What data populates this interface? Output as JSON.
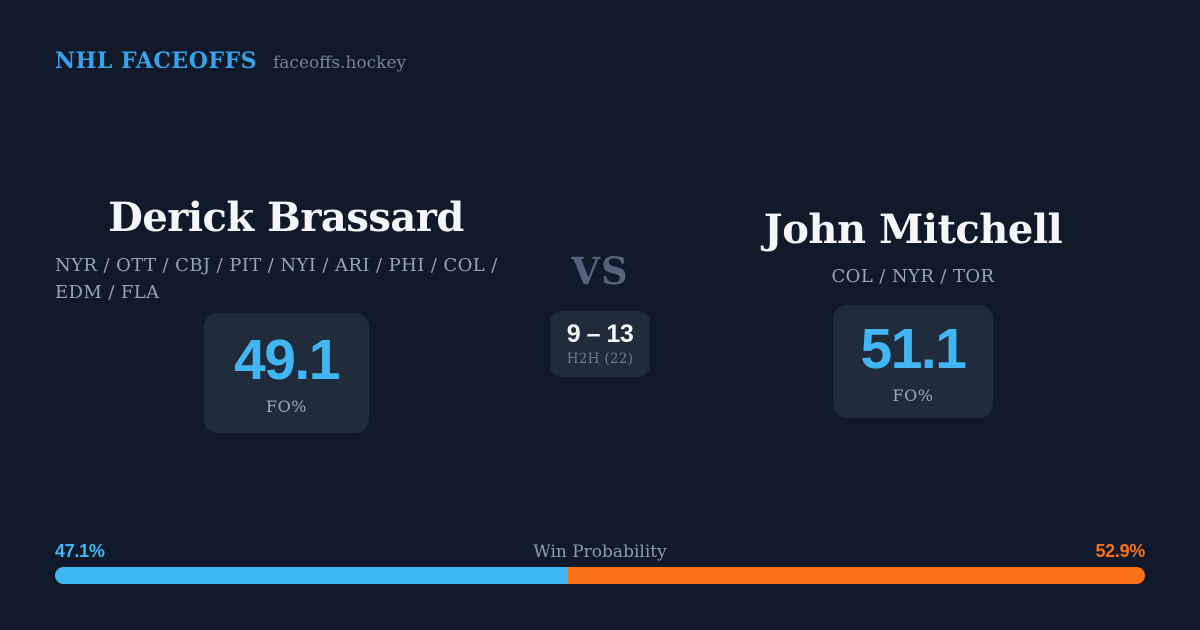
{
  "header": {
    "brand": "NHL FACEOFFS",
    "site": "faceoffs.hockey"
  },
  "matchup": {
    "vs_label": "VS",
    "h2h": {
      "score": "9 – 13",
      "label": "H2H (22)"
    },
    "left": {
      "name": "Derick Brassard",
      "teams": "NYR / OTT / CBJ / PIT / NYI / ARI / PHI / COL / EDM / FLA",
      "fo_value": "49.1",
      "fo_label": "FO%"
    },
    "right": {
      "name": "John Mitchell",
      "teams": "COL / NYR / TOR",
      "fo_value": "51.1",
      "fo_label": "FO%"
    }
  },
  "win_probability": {
    "label": "Win Probability",
    "left_label": "47.1%",
    "right_label": "52.9%",
    "left_value": 47.1,
    "right_value": 52.9
  },
  "colors": {
    "background": "#111a2b",
    "card": "#202b3c",
    "brand_blue": "#38a3e8",
    "accent_blue": "#41b6f2",
    "bar_blue": "#3ab7f2",
    "accent_orange": "#f97316",
    "muted_text": "#97a4b8",
    "vs_text": "#546379",
    "white_text": "#f4f6f9"
  }
}
